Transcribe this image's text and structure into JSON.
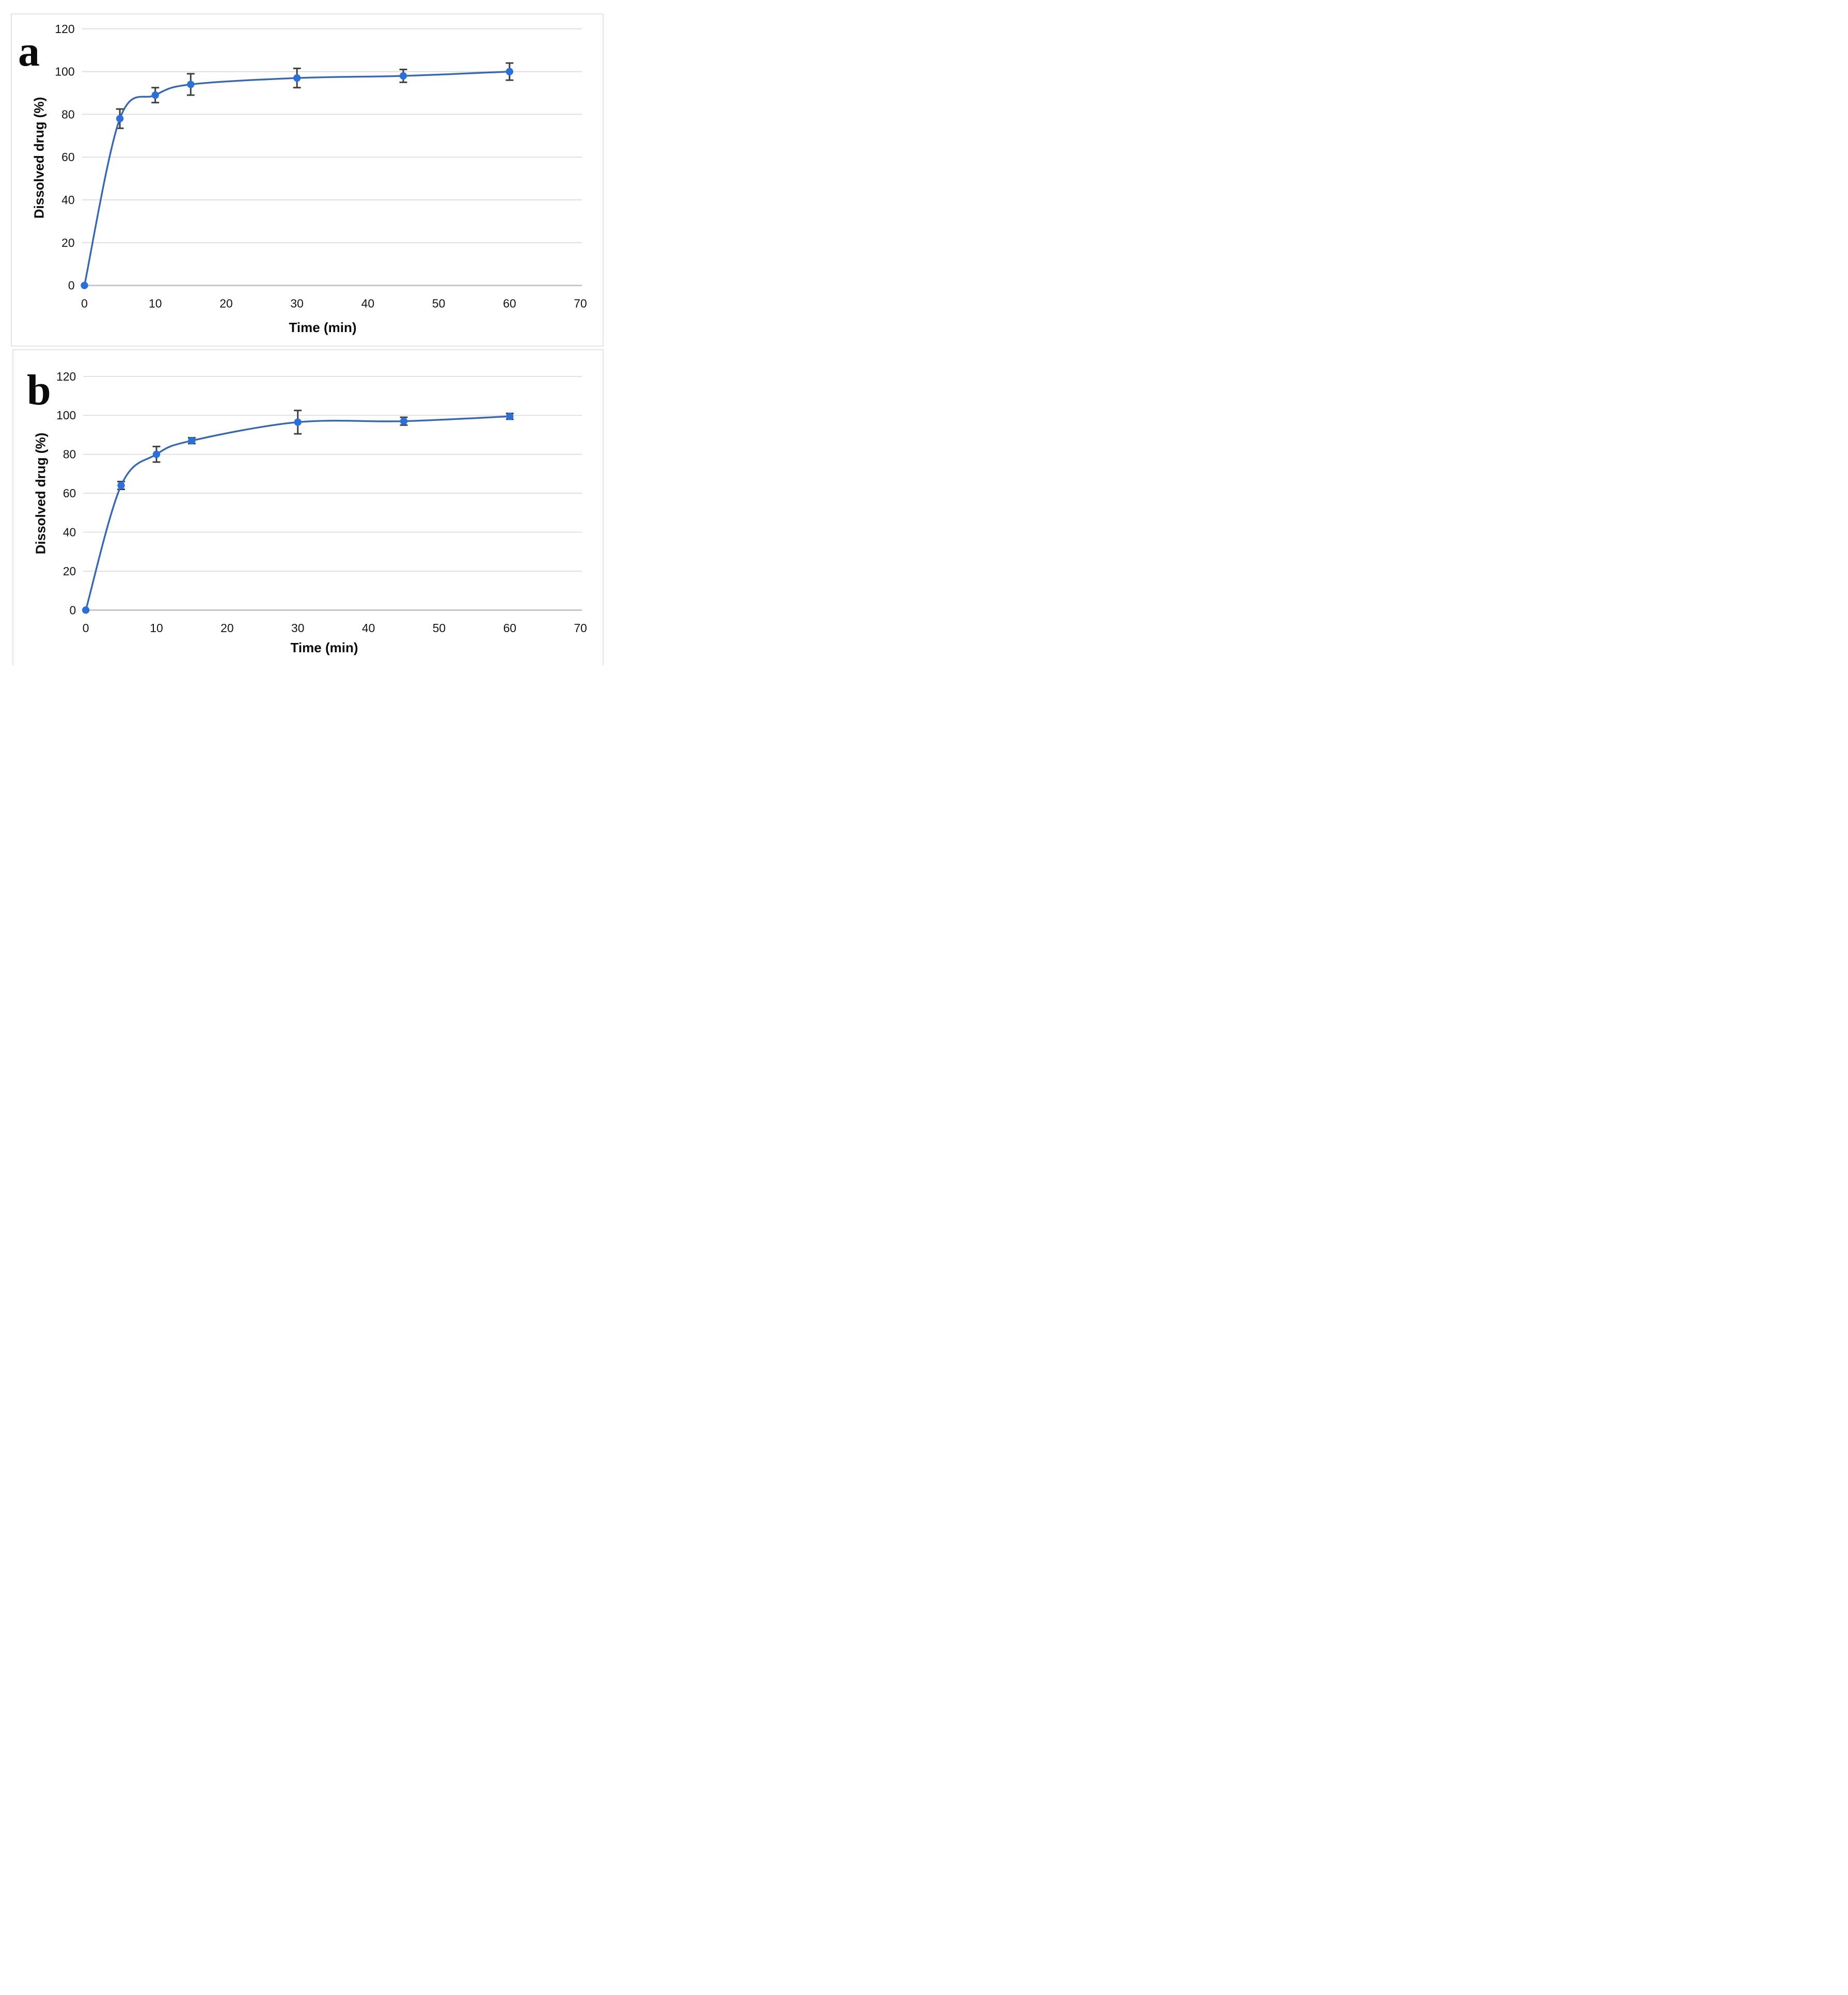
{
  "figure": {
    "description": "Two-panel dissolution profile figure",
    "panel_count": 2
  },
  "chart_data": [
    {
      "panel_label": "a",
      "type": "line",
      "title": "",
      "xlabel": "Time (min)",
      "ylabel": "Dissolved drug (%)",
      "x": [
        0,
        5,
        10,
        15,
        30,
        45,
        60
      ],
      "series": [
        {
          "name": "Dissolved drug (%)",
          "values": [
            0,
            78,
            89,
            94,
            97,
            98,
            100
          ],
          "yerr": [
            0,
            4.5,
            3.5,
            5,
            4.5,
            3,
            4
          ]
        }
      ],
      "x_ticks": [
        0,
        10,
        20,
        30,
        40,
        50,
        60,
        70
      ],
      "y_ticks": [
        0,
        20,
        40,
        60,
        80,
        100,
        120
      ],
      "xlim": [
        0,
        70
      ],
      "ylim": [
        0,
        120
      ],
      "grid": "horizontal",
      "legend": "none",
      "marker": "circle",
      "line_style": "smooth",
      "colors": {
        "line": "#3a68ae",
        "marker": "#2b70d9",
        "error_bar": "#3f3f3f",
        "gridline": "#dadada",
        "axis_line": "#c6c6c6",
        "text": "#141414"
      }
    },
    {
      "panel_label": "b",
      "type": "line",
      "title": "",
      "xlabel": "Time (min)",
      "ylabel": "Dissolved drug (%)",
      "x": [
        0,
        5,
        10,
        15,
        30,
        45,
        60
      ],
      "series": [
        {
          "name": "Dissolved drug (%)",
          "values": [
            0,
            64,
            80,
            87,
            96.5,
            97,
            99.5
          ],
          "yerr": [
            0,
            2,
            4,
            1.5,
            6,
            2,
            1.5
          ]
        }
      ],
      "x_ticks": [
        0,
        10,
        20,
        30,
        40,
        50,
        60,
        70
      ],
      "y_ticks": [
        0,
        20,
        40,
        60,
        80,
        100,
        120
      ],
      "xlim": [
        0,
        70
      ],
      "ylim": [
        0,
        120
      ],
      "grid": "horizontal",
      "legend": "none",
      "marker": "circle",
      "line_style": "smooth",
      "colors": {
        "line": "#3a68ae",
        "marker": "#2b70d9",
        "error_bar": "#3f3f3f",
        "gridline": "#dadada",
        "axis_line": "#c6c6c6",
        "text": "#141414"
      }
    }
  ]
}
